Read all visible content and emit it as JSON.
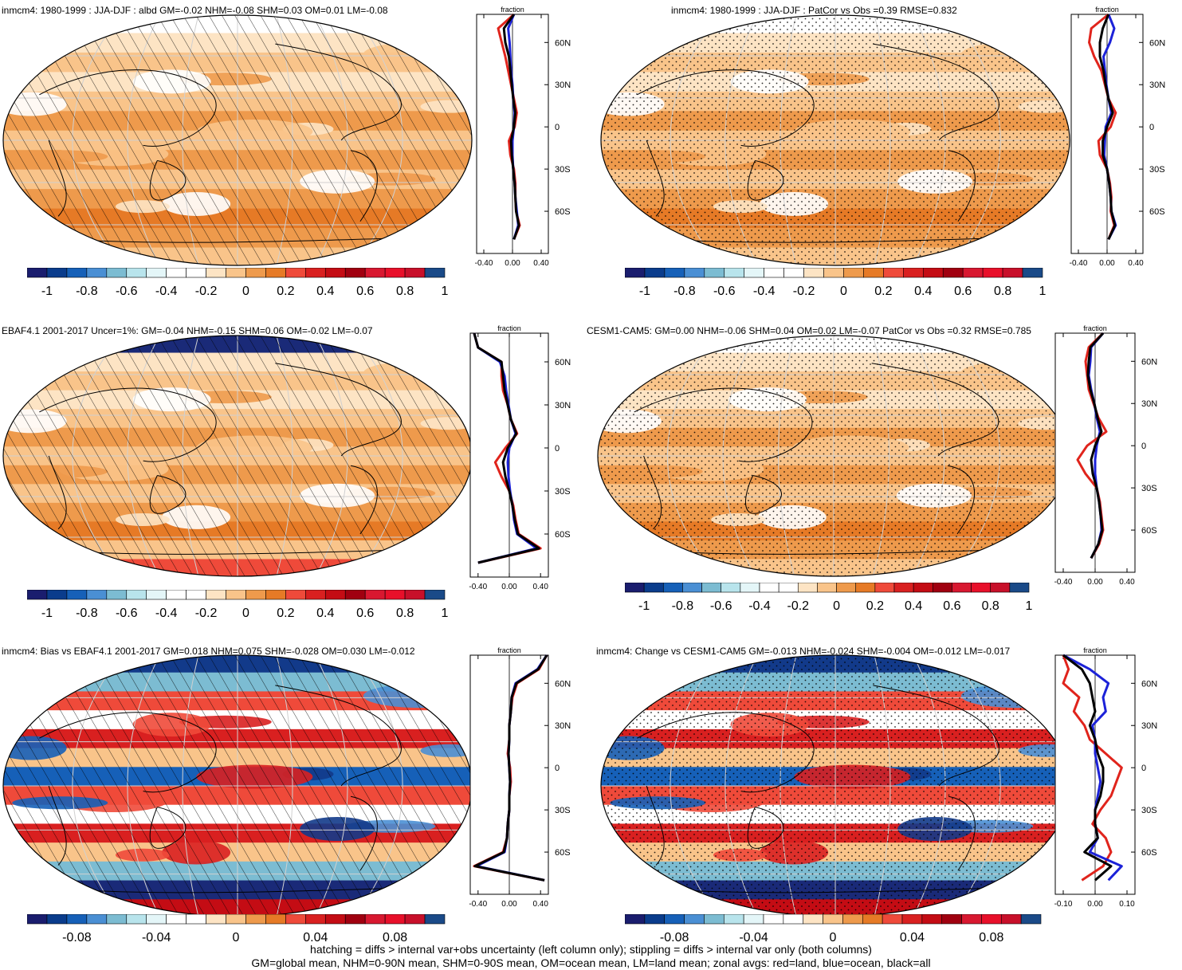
{
  "footer": {
    "line1": "hatching = diffs > internal var+obs uncertainty (left column only); stippling = diffs > internal var only (both columns)",
    "line2": "GM=global mean, NHM=0-90N mean, SHM=0-90S mean, OM=ocean mean, LM=land mean; zonal avgs: red=land, blue=ocean, black=all"
  },
  "colors": {
    "scale": [
      "#1a1d6e",
      "#0a3c8c",
      "#1660b8",
      "#4a8fd4",
      "#7cbcd2",
      "#b8e4ec",
      "#e4f6f8",
      "#ffffff",
      "#ffffff",
      "#fde4c4",
      "#f9c48a",
      "#ee9a4c",
      "#e67a26",
      "#ef4a3a",
      "#d92020",
      "#c40c14",
      "#a00010",
      "#d81830",
      "#e8102a",
      "#c8102a",
      "#1a4a88"
    ],
    "land": "#e0241c",
    "ocean": "#1c22d8",
    "all": "#000000"
  },
  "zonal_lat_ticks": [
    "60N",
    "30N",
    "0",
    "30S",
    "60S"
  ],
  "chart_data": [
    {
      "id": "p1",
      "type": "map+zonal",
      "title": "inmcm4: 1980-1999 : JJA-DJF : albd GM=-0.02 NHM=-0.08 SHM=0.03 OM=0.01 LM=-0.08",
      "colorbar_ticks": [
        "-1",
        "-0.8",
        "-0.6",
        "-0.4",
        "-0.2",
        "0",
        "0.2",
        "0.4",
        "0.6",
        "0.8",
        "1"
      ],
      "zonal_label": "fraction",
      "zonal_xticks": [
        "-0.40",
        "0.00",
        "0.40"
      ],
      "zonal_xlim": [
        -0.5,
        0.5
      ],
      "pattern": "hatch",
      "style": "orange",
      "lat": [
        80,
        70,
        60,
        50,
        40,
        30,
        20,
        10,
        0,
        -10,
        -20,
        -30,
        -40,
        -50,
        -60,
        -70,
        -80
      ],
      "land": [
        0.02,
        -0.2,
        -0.15,
        -0.1,
        -0.06,
        -0.02,
        0.02,
        0.06,
        0.03,
        -0.05,
        -0.03,
        0.02,
        0.04,
        0.04,
        0.05,
        0.1,
        0.02
      ],
      "ocean": [
        0.02,
        -0.06,
        -0.04,
        -0.03,
        -0.02,
        0.0,
        0.01,
        0.03,
        0.02,
        0.0,
        0.0,
        0.01,
        0.03,
        0.04,
        0.06,
        0.08,
        0.02
      ],
      "all": [
        0.02,
        -0.12,
        -0.1,
        -0.05,
        -0.03,
        -0.01,
        0.01,
        0.04,
        0.02,
        -0.02,
        -0.01,
        0.01,
        0.03,
        0.04,
        0.05,
        0.09,
        0.02
      ]
    },
    {
      "id": "p2",
      "type": "map+zonal",
      "title": "inmcm4: 1980-1999 : JJA-DJF : PatCor vs Obs =0.39 RMSE=0.832",
      "colorbar_ticks": [
        "-1",
        "-0.8",
        "-0.6",
        "-0.4",
        "-0.2",
        "0",
        "0.2",
        "0.4",
        "0.6",
        "0.8",
        "1"
      ],
      "zonal_label": "fraction",
      "zonal_xticks": [
        "-0.40",
        "0.00",
        "0.40"
      ],
      "zonal_xlim": [
        -0.5,
        0.5
      ],
      "pattern": "stipple",
      "style": "orange",
      "lat": [
        80,
        70,
        60,
        50,
        40,
        30,
        20,
        10,
        0,
        -10,
        -20,
        -30,
        -40,
        -50,
        -60,
        -70,
        -80
      ],
      "land": [
        0.02,
        -0.22,
        -0.25,
        -0.18,
        -0.08,
        -0.03,
        0.02,
        0.12,
        0.05,
        -0.12,
        -0.1,
        0.0,
        0.04,
        0.06,
        0.05,
        0.1,
        0.02
      ],
      "ocean": [
        0.02,
        0.1,
        0.04,
        -0.05,
        -0.03,
        -0.01,
        0.02,
        0.06,
        -0.02,
        -0.03,
        -0.04,
        0.0,
        0.03,
        0.05,
        0.06,
        0.12,
        0.02
      ],
      "all": [
        0.02,
        -0.06,
        -0.1,
        -0.1,
        -0.05,
        -0.02,
        0.02,
        0.08,
        0.0,
        -0.06,
        -0.06,
        0.0,
        0.03,
        0.05,
        0.06,
        0.11,
        0.02
      ]
    },
    {
      "id": "p3",
      "type": "map+zonal",
      "title": "EBAF4.1 2001-2017 Uncer=1%: GM=-0.04 NHM=-0.15 SHM=0.06 OM=-0.02 LM=-0.07",
      "colorbar_ticks": [
        "-1",
        "-0.8",
        "-0.6",
        "-0.4",
        "-0.2",
        "0",
        "0.2",
        "0.4",
        "0.6",
        "0.8",
        "1"
      ],
      "zonal_label": "fraction",
      "zonal_xticks": [
        "-0.40",
        "0.00",
        "0.40"
      ],
      "zonal_xlim": [
        -0.5,
        0.5
      ],
      "pattern": "hatch",
      "style": "ebaf",
      "lat": [
        80,
        70,
        60,
        50,
        40,
        30,
        20,
        10,
        0,
        -10,
        -20,
        -30,
        -40,
        -50,
        -60,
        -70,
        -80
      ],
      "land": [
        -0.45,
        -0.4,
        -0.1,
        -0.1,
        -0.08,
        -0.02,
        0.02,
        0.1,
        -0.05,
        -0.18,
        -0.1,
        0.0,
        0.05,
        0.08,
        0.12,
        0.4,
        -0.4
      ],
      "ocean": [
        -0.45,
        -0.4,
        -0.12,
        -0.06,
        -0.04,
        -0.01,
        0.02,
        0.08,
        0.0,
        -0.02,
        -0.01,
        0.01,
        0.04,
        0.06,
        0.1,
        0.35,
        -0.4
      ],
      "all": [
        -0.45,
        -0.4,
        -0.1,
        -0.08,
        -0.06,
        -0.02,
        0.02,
        0.09,
        -0.02,
        -0.08,
        -0.05,
        0.0,
        0.04,
        0.07,
        0.11,
        0.38,
        -0.4
      ]
    },
    {
      "id": "p4",
      "type": "map+zonal",
      "title": "CESM1-CAM5: GM=0.00 NHM=-0.06 SHM=0.04 OM=0.02 LM=-0.07 PatCor vs Obs =0.32 RMSE=0.785",
      "colorbar_ticks": [
        "-1",
        "-0.8",
        "-0.6",
        "-0.4",
        "-0.2",
        "0",
        "0.2",
        "0.4",
        "0.6",
        "0.8",
        "1"
      ],
      "zonal_label": "fraction",
      "zonal_xticks": [
        "-0.40",
        "0.00",
        "0.40"
      ],
      "zonal_xlim": [
        -0.5,
        0.5
      ],
      "pattern": "stipple",
      "style": "orange",
      "lat": [
        80,
        70,
        60,
        50,
        40,
        30,
        20,
        10,
        0,
        -10,
        -20,
        -30,
        -40,
        -50,
        -60,
        -70,
        -80
      ],
      "land": [
        0.1,
        -0.08,
        -0.12,
        -0.1,
        -0.08,
        -0.02,
        0.04,
        0.14,
        -0.1,
        -0.22,
        -0.12,
        0.02,
        0.06,
        0.08,
        0.1,
        0.05,
        -0.05
      ],
      "ocean": [
        0.1,
        -0.05,
        -0.06,
        -0.08,
        -0.05,
        -0.01,
        0.02,
        0.06,
        0.02,
        0.0,
        0.0,
        0.02,
        0.05,
        0.07,
        0.08,
        0.04,
        -0.05
      ],
      "all": [
        0.1,
        -0.06,
        -0.08,
        -0.09,
        -0.06,
        -0.01,
        0.03,
        0.08,
        0.0,
        -0.05,
        -0.03,
        0.02,
        0.05,
        0.07,
        0.09,
        0.04,
        -0.05
      ]
    },
    {
      "id": "p5",
      "type": "map+zonal",
      "title": "inmcm4: Bias vs EBAF4.1 2001-2017 GM=0.018 NHM=0.075 SHM=-0.028 OM=0.030 LM=-0.012",
      "colorbar_ticks": [
        "-0.08",
        "-0.04",
        "0",
        "0.04",
        "0.08"
      ],
      "zonal_label": "fraction",
      "zonal_xticks": [
        "-0.40",
        "0.00",
        "0.40"
      ],
      "zonal_xlim": [
        -0.5,
        0.5
      ],
      "pattern": "hatch",
      "style": "bias",
      "lat": [
        80,
        70,
        60,
        50,
        40,
        30,
        20,
        10,
        0,
        -10,
        -20,
        -30,
        -40,
        -50,
        -60,
        -70,
        -80
      ],
      "land": [
        0.48,
        0.38,
        0.1,
        0.04,
        0.02,
        0.0,
        0.0,
        -0.02,
        0.01,
        0.02,
        0.0,
        0.0,
        -0.02,
        -0.03,
        -0.08,
        -0.45,
        0.45
      ],
      "ocean": [
        0.48,
        0.36,
        0.08,
        0.03,
        0.02,
        0.0,
        0.0,
        -0.01,
        0.0,
        0.01,
        0.0,
        0.0,
        -0.02,
        -0.03,
        -0.06,
        -0.42,
        0.45
      ],
      "all": [
        0.48,
        0.37,
        0.09,
        0.03,
        0.02,
        0.0,
        0.0,
        -0.01,
        0.0,
        0.01,
        0.0,
        0.0,
        -0.02,
        -0.03,
        -0.07,
        -0.44,
        0.45
      ]
    },
    {
      "id": "p6",
      "type": "map+zonal",
      "title": "inmcm4: Change vs CESM1-CAM5 GM=-0.013 NHM=-0.024 SHM=-0.004 OM=-0.012 LM=-0.017",
      "colorbar_ticks": [
        "-0.08",
        "-0.04",
        "0",
        "0.04",
        "0.08"
      ],
      "zonal_label": "fraction",
      "zonal_xticks": [
        "-0.10",
        "0.00",
        "0.10"
      ],
      "zonal_xlim": [
        -0.15,
        0.15
      ],
      "pattern": "stipple",
      "style": "bias",
      "lat": [
        80,
        70,
        60,
        50,
        40,
        30,
        20,
        10,
        0,
        -10,
        -20,
        -30,
        -40,
        -50,
        -60,
        -70,
        -80
      ],
      "land": [
        -0.12,
        -0.1,
        -0.12,
        -0.06,
        -0.08,
        -0.04,
        -0.02,
        0.04,
        0.1,
        0.08,
        0.06,
        0.02,
        -0.01,
        0.04,
        0.06,
        0.03,
        -0.05
      ],
      "ocean": [
        -0.12,
        -0.02,
        0.05,
        0.03,
        0.04,
        -0.01,
        0.0,
        0.0,
        0.01,
        0.02,
        0.01,
        0.0,
        0.0,
        0.01,
        -0.02,
        0.1,
        0.05
      ],
      "all": [
        -0.12,
        -0.05,
        -0.02,
        -0.01,
        0.0,
        -0.02,
        0.0,
        0.01,
        0.03,
        0.03,
        0.02,
        0.0,
        0.0,
        0.01,
        -0.04,
        0.06,
        0.0
      ]
    }
  ]
}
